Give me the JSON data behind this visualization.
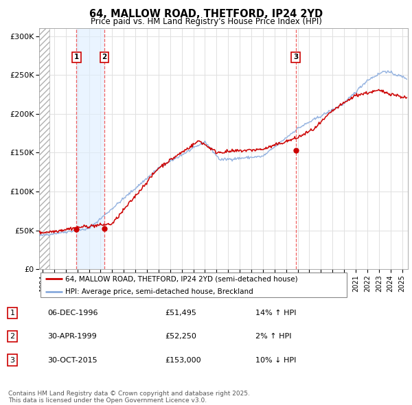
{
  "title": "64, MALLOW ROAD, THETFORD, IP24 2YD",
  "subtitle": "Price paid vs. HM Land Registry's House Price Index (HPI)",
  "ylabel_ticks": [
    "£0",
    "£50K",
    "£100K",
    "£150K",
    "£200K",
    "£250K",
    "£300K"
  ],
  "ytick_values": [
    0,
    50000,
    100000,
    150000,
    200000,
    250000,
    300000
  ],
  "ylim": [
    0,
    310000
  ],
  "xlim_start": 1993.7,
  "xlim_end": 2025.5,
  "sale_dates": [
    1996.92,
    1999.33,
    2015.83
  ],
  "sale_prices": [
    51495,
    52250,
    153000
  ],
  "sale_labels": [
    "1",
    "2",
    "3"
  ],
  "legend_line1": "64, MALLOW ROAD, THETFORD, IP24 2YD (semi-detached house)",
  "legend_line2": "HPI: Average price, semi-detached house, Breckland",
  "table_data": [
    [
      "1",
      "06-DEC-1996",
      "£51,495",
      "14% ↑ HPI"
    ],
    [
      "2",
      "30-APR-1999",
      "£52,250",
      "2% ↑ HPI"
    ],
    [
      "3",
      "30-OCT-2015",
      "£153,000",
      "10% ↓ HPI"
    ]
  ],
  "footnote": "Contains HM Land Registry data © Crown copyright and database right 2025.\nThis data is licensed under the Open Government Licence v3.0.",
  "grid_color": "#e0e0e0",
  "red_color": "#cc0000",
  "blue_color": "#88aadd",
  "dashed_line_color": "#ee4444",
  "shade_color": "#ddeeff"
}
